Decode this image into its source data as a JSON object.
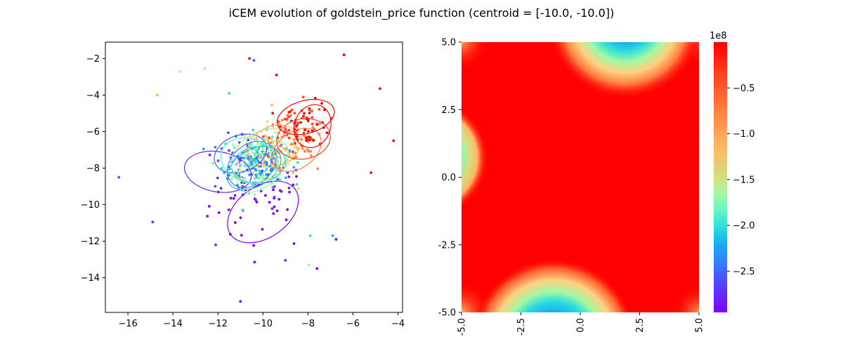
{
  "title": "iCEM evolution of goldstein_price function (centroid = [-10.0, -10.0])",
  "chart_data": [
    {
      "type": "scatter",
      "xlim": [
        -17.0,
        -3.8
      ],
      "ylim": [
        -15.9,
        -1.1
      ],
      "xticks": [
        -16,
        -14,
        -12,
        -10,
        -8,
        -6,
        -4
      ],
      "yticks": [
        -14,
        -12,
        -10,
        -8,
        -6,
        -4,
        -2
      ],
      "xtick_labels": [
        "−16",
        "−14",
        "−12",
        "−10",
        "−8",
        "−6",
        "−4"
      ],
      "ytick_labels": [
        "−14",
        "−12",
        "−10",
        "−8",
        "−6",
        "−4",
        "−2"
      ],
      "colormap": "rainbow",
      "iterations": [
        {
          "color": "#8000ff",
          "mean": [
            -10.0,
            -10.0
          ],
          "std": [
            1.2,
            1.2
          ]
        },
        {
          "color": "#6a23fe",
          "mean": [
            -10.3,
            -8.4
          ],
          "std": [
            1.0,
            0.9
          ]
        },
        {
          "color": "#4c50fc",
          "mean": [
            -10.6,
            -7.8
          ],
          "std": [
            0.8,
            0.8
          ]
        },
        {
          "color": "#3183f7",
          "mean": [
            -10.4,
            -7.6
          ],
          "std": [
            0.75,
            0.7
          ]
        },
        {
          "color": "#1aa9f1",
          "mean": [
            -10.2,
            -7.7
          ],
          "std": [
            0.7,
            0.65
          ]
        },
        {
          "color": "#2adddd",
          "mean": [
            -10.4,
            -7.5
          ],
          "std": [
            0.7,
            0.7
          ]
        },
        {
          "color": "#5df7c3",
          "mean": [
            -10.2,
            -7.9
          ],
          "std": [
            0.7,
            0.7
          ]
        },
        {
          "color": "#a3f9a3",
          "mean": [
            -10.1,
            -7.6
          ],
          "std": [
            0.7,
            0.7
          ]
        },
        {
          "color": "#d4dd80",
          "mean": [
            -10.0,
            -7.2
          ],
          "std": [
            0.7,
            0.75
          ]
        },
        {
          "color": "#ffb460",
          "mean": [
            -9.3,
            -7.0
          ],
          "std": [
            0.7,
            0.75
          ]
        },
        {
          "color": "#ff7e41",
          "mean": [
            -8.6,
            -6.8
          ],
          "std": [
            0.7,
            0.8
          ]
        },
        {
          "color": "#ff4421",
          "mean": [
            -8.4,
            -5.7
          ],
          "std": [
            0.6,
            0.65
          ]
        },
        {
          "color": "#ff0000",
          "mean": [
            -8.0,
            -5.6
          ],
          "std": [
            0.55,
            0.6
          ]
        }
      ],
      "ellipses": [
        {
          "color": "#8000ff",
          "cx": -10.0,
          "cy": -10.4,
          "rx": 1.75,
          "ry": 1.4,
          "angle": -35
        },
        {
          "color": "#6a23fe",
          "cx": -12.0,
          "cy": -8.2,
          "rx": 1.5,
          "ry": 1.1,
          "angle": 10
        },
        {
          "color": "#4c50fc",
          "cx": -11.0,
          "cy": -7.2,
          "rx": 1.2,
          "ry": 1.0,
          "angle": -20
        },
        {
          "color": "#3183f7",
          "cx": -10.5,
          "cy": -7.8,
          "rx": 1.2,
          "ry": 1.1,
          "angle": -40
        },
        {
          "color": "#1aa9f1",
          "cx": -10.4,
          "cy": -8.0,
          "rx": 1.3,
          "ry": 1.0,
          "angle": -30
        },
        {
          "color": "#2adddd",
          "cx": -10.2,
          "cy": -7.8,
          "rx": 1.2,
          "ry": 1.0,
          "angle": -10
        },
        {
          "color": "#5df7c3",
          "cx": -10.6,
          "cy": -7.6,
          "rx": 1.3,
          "ry": 1.2,
          "angle": 20
        },
        {
          "color": "#a3f9a3",
          "cx": -10.0,
          "cy": -7.9,
          "rx": 1.4,
          "ry": 1.0,
          "angle": -45
        },
        {
          "color": "#d4dd80",
          "cx": -10.0,
          "cy": -7.3,
          "rx": 1.5,
          "ry": 1.3,
          "angle": -30
        },
        {
          "color": "#ffb460",
          "cx": -9.5,
          "cy": -6.8,
          "rx": 1.2,
          "ry": 1.1,
          "angle": -20
        },
        {
          "color": "#ff7e41",
          "cx": -8.5,
          "cy": -7.0,
          "rx": 1.2,
          "ry": 1.0,
          "angle": -35
        },
        {
          "color": "#ff4421",
          "cx": -8.2,
          "cy": -6.4,
          "rx": 1.2,
          "ry": 1.1,
          "angle": -10
        },
        {
          "color": "#ff0000",
          "cx": -7.8,
          "cy": -5.7,
          "rx": 0.8,
          "ry": 1.2,
          "angle": 20
        },
        {
          "color": "#ff0000",
          "cx": -8.1,
          "cy": -5.2,
          "rx": 1.3,
          "ry": 0.9,
          "angle": -15
        }
      ],
      "outliers": [
        {
          "x": -16.4,
          "y": -8.5,
          "color": "#4c50fc"
        },
        {
          "x": -14.9,
          "y": -10.95,
          "color": "#6a23fe"
        },
        {
          "x": -14.7,
          "y": -4.0,
          "color": "#ffb460"
        },
        {
          "x": -11.0,
          "y": -15.3,
          "color": "#8000ff"
        },
        {
          "x": -10.6,
          "y": -2.0,
          "color": "#ff0000"
        },
        {
          "x": -10.4,
          "y": -2.1,
          "color": "#4c50fc"
        },
        {
          "x": -6.4,
          "y": -1.8,
          "color": "#ff0000"
        },
        {
          "x": -4.8,
          "y": -3.65,
          "color": "#ff0000"
        },
        {
          "x": -4.2,
          "y": -6.5,
          "color": "#ff0000"
        },
        {
          "x": -7.6,
          "y": -13.5,
          "color": "#8000ff"
        },
        {
          "x": -7.95,
          "y": -13.3,
          "color": "#a3f9a3"
        },
        {
          "x": -9.0,
          "y": -13.05,
          "color": "#6a23fe"
        },
        {
          "x": -12.1,
          "y": -12.2,
          "color": "#6a23fe"
        },
        {
          "x": -13.7,
          "y": -2.7,
          "color": "#a3f9a3"
        },
        {
          "x": -12.6,
          "y": -2.55,
          "color": "#a3f9a3"
        },
        {
          "x": -5.2,
          "y": -8.25,
          "color": "#ff0000"
        },
        {
          "x": -6.9,
          "y": -11.7,
          "color": "#1aa9f1"
        },
        {
          "x": -6.75,
          "y": -11.9,
          "color": "#8000ff"
        },
        {
          "x": -11.5,
          "y": -3.9,
          "color": "#2adddd"
        },
        {
          "x": -9.4,
          "y": -2.9,
          "color": "#ff0000"
        },
        {
          "x": -7.9,
          "y": -11.7,
          "color": "#2adddd"
        }
      ]
    },
    {
      "type": "heatmap",
      "function": "goldstein_price",
      "xlim": [
        -5.0,
        5.0
      ],
      "ylim": [
        -5.0,
        5.0
      ],
      "xtick_labels": [
        "-5.0",
        "-2.5",
        "0.0",
        "2.5",
        "5.0"
      ],
      "ytick_labels": [
        "5.0",
        "2.5",
        "0.0",
        "-2.5",
        "-5.0"
      ],
      "colormap": "rainbow",
      "colorbar": {
        "offset_label": "1e8",
        "ticks": [
          -0.5,
          -1.0,
          -1.5,
          -2.0,
          -2.5
        ],
        "tick_labels": [
          "−0.5",
          "−1.0",
          "−1.5",
          "−2.0",
          "−2.5"
        ],
        "range": [
          -2.95,
          0.0
        ]
      }
    }
  ]
}
